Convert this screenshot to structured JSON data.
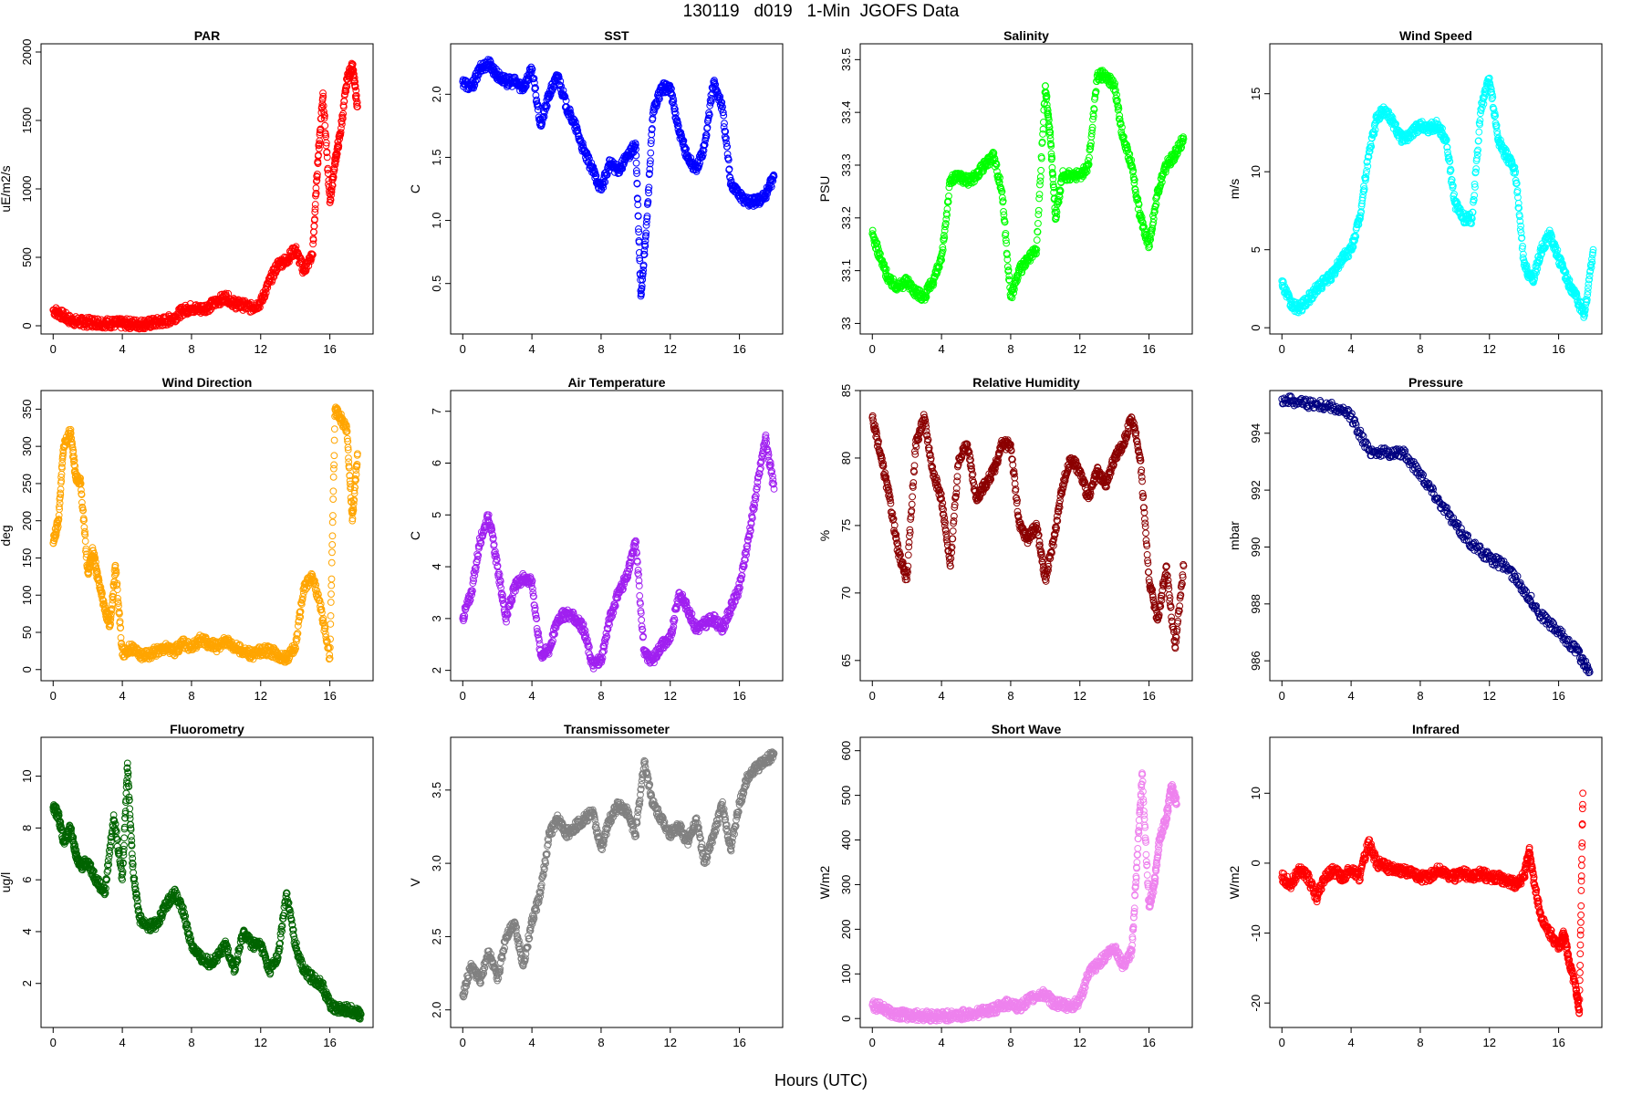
{
  "page": {
    "title": "130119   d019   1-Min  JGOFS Data",
    "xlabel": "Hours (UTC)"
  },
  "chart_data": [
    {
      "id": "par",
      "type": "scatter",
      "title": "PAR",
      "ylabel": "uE/m2/s",
      "color": "#ff0000",
      "xlim": [
        -0.7,
        18.5
      ],
      "ylim": [
        -60,
        2060
      ],
      "xticks": [
        0,
        4,
        8,
        12,
        16
      ],
      "yticks": [
        0,
        500,
        1000,
        1500,
        2000
      ],
      "x": [
        0,
        0.5,
        1,
        1.5,
        2,
        2.5,
        3,
        3.5,
        4,
        4.5,
        5,
        5.5,
        6,
        6.5,
        7,
        7.5,
        8,
        8.5,
        9,
        9.5,
        10,
        10.5,
        11,
        11.5,
        12,
        12.5,
        13,
        13.5,
        14,
        14.5,
        15,
        15.3,
        15.6,
        16,
        16.3,
        16.6,
        17,
        17.3,
        17.6
      ],
      "y": [
        115,
        80,
        40,
        28,
        25,
        25,
        20,
        18,
        15,
        15,
        12,
        15,
        25,
        35,
        60,
        110,
        130,
        120,
        140,
        180,
        210,
        160,
        150,
        130,
        170,
        320,
        450,
        480,
        560,
        400,
        520,
        1200,
        1700,
        900,
        1200,
        1400,
        1800,
        1900,
        1600
      ]
    },
    {
      "id": "sst",
      "type": "scatter",
      "title": "SST",
      "ylabel": "C",
      "color": "#0000ff",
      "xlim": [
        -0.7,
        18.5
      ],
      "ylim": [
        0.1,
        2.4
      ],
      "xticks": [
        0,
        4,
        8,
        12,
        16
      ],
      "yticks": [
        0.5,
        1.0,
        1.5,
        2.0
      ],
      "x": [
        0,
        0.5,
        1,
        1.5,
        2,
        2.5,
        3,
        3.5,
        4,
        4.5,
        5,
        5.5,
        6,
        6.5,
        7,
        7.5,
        8,
        8.5,
        9,
        9.5,
        10,
        10.3,
        10.6,
        11,
        11.5,
        12,
        12.5,
        13,
        13.5,
        14,
        14.5,
        15,
        15.5,
        16,
        16.5,
        17,
        17.5,
        18
      ],
      "y": [
        2.1,
        2.05,
        2.2,
        2.25,
        2.15,
        2.1,
        2.1,
        2.05,
        2.2,
        1.75,
        2.0,
        2.15,
        1.9,
        1.75,
        1.55,
        1.4,
        1.25,
        1.45,
        1.4,
        1.5,
        1.6,
        0.4,
        0.9,
        1.85,
        2.05,
        2.05,
        1.7,
        1.5,
        1.4,
        1.6,
        2.1,
        1.9,
        1.3,
        1.2,
        1.15,
        1.15,
        1.2,
        1.35
      ]
    },
    {
      "id": "salinity",
      "type": "scatter",
      "title": "Salinity",
      "ylabel": "PSU",
      "color": "#00ff00",
      "xlim": [
        -0.7,
        18.5
      ],
      "ylim": [
        32.98,
        33.53
      ],
      "xticks": [
        0,
        4,
        8,
        12,
        16
      ],
      "yticks": [
        33.0,
        33.1,
        33.2,
        33.3,
        33.4,
        33.5
      ],
      "x": [
        0,
        0.5,
        1,
        1.5,
        2,
        2.5,
        3,
        3.5,
        4,
        4.5,
        5,
        5.5,
        6,
        6.5,
        7,
        7.5,
        8,
        8.5,
        9,
        9.5,
        10,
        10.3,
        10.6,
        11,
        11.5,
        12,
        12.5,
        13,
        13.5,
        14,
        14.5,
        15,
        15.5,
        16,
        16.5,
        17,
        17.5,
        18
      ],
      "y": [
        33.17,
        33.12,
        33.08,
        33.07,
        33.08,
        33.06,
        33.05,
        33.08,
        33.12,
        33.27,
        33.28,
        33.27,
        33.28,
        33.3,
        33.32,
        33.25,
        33.05,
        33.1,
        33.12,
        33.14,
        33.45,
        33.35,
        33.2,
        33.28,
        33.28,
        33.28,
        33.3,
        33.47,
        33.47,
        33.45,
        33.35,
        33.3,
        33.2,
        33.15,
        33.25,
        33.3,
        33.32,
        33.35
      ]
    },
    {
      "id": "wind_speed",
      "type": "scatter",
      "title": "Wind Speed",
      "ylabel": "m/s",
      "color": "#00ffff",
      "xlim": [
        -0.7,
        18.5
      ],
      "ylim": [
        -0.4,
        18.2
      ],
      "xticks": [
        0,
        4,
        8,
        12,
        16
      ],
      "yticks": [
        0,
        5,
        10,
        15
      ],
      "x": [
        0,
        0.5,
        1,
        1.5,
        2,
        2.5,
        3,
        3.5,
        4,
        4.5,
        5,
        5.5,
        6,
        6.5,
        7,
        7.5,
        8,
        8.5,
        9,
        9.5,
        10,
        10.5,
        11,
        11.5,
        12,
        12.5,
        13,
        13.5,
        14,
        14.5,
        15,
        15.5,
        16,
        16.5,
        17,
        17.5,
        18
      ],
      "y": [
        3,
        1.5,
        1.2,
        1.8,
        2.5,
        3,
        3.5,
        4.5,
        5,
        7,
        11,
        13.5,
        14,
        13,
        12,
        12.5,
        13,
        12.8,
        13,
        12,
        8,
        7,
        7,
        14,
        16,
        12,
        11,
        10,
        4,
        3,
        5,
        6,
        4.5,
        3,
        2,
        0.8,
        5
      ]
    },
    {
      "id": "wind_direction",
      "type": "scatter",
      "title": "Wind Direction",
      "ylabel": "deg",
      "color": "#ffa500",
      "xlim": [
        -0.7,
        18.5
      ],
      "ylim": [
        -15,
        375
      ],
      "xticks": [
        0,
        4,
        8,
        12,
        16
      ],
      "yticks": [
        0,
        50,
        100,
        150,
        200,
        250,
        300,
        350
      ],
      "x": [
        0,
        0.3,
        0.6,
        1,
        1.3,
        1.6,
        2,
        2.3,
        2.6,
        3,
        3.3,
        3.6,
        4,
        4.5,
        5,
        5.5,
        6,
        6.5,
        7,
        7.5,
        8,
        8.5,
        9,
        9.5,
        10,
        10.5,
        11,
        11.5,
        12,
        12.5,
        13,
        13.5,
        14,
        14.5,
        15,
        15.5,
        16,
        16.3,
        16.6,
        17,
        17.3,
        17.6
      ],
      "y": [
        170,
        200,
        300,
        320,
        260,
        250,
        130,
        160,
        120,
        80,
        60,
        140,
        20,
        30,
        20,
        20,
        25,
        30,
        25,
        35,
        30,
        40,
        35,
        30,
        40,
        30,
        25,
        20,
        25,
        25,
        20,
        15,
        30,
        110,
        125,
        80,
        15,
        350,
        340,
        320,
        200,
        290
      ]
    },
    {
      "id": "air_temperature",
      "type": "scatter",
      "title": "Air Temperature",
      "ylabel": "C",
      "color": "#a020f0",
      "xlim": [
        -0.7,
        18.5
      ],
      "ylim": [
        1.8,
        7.4
      ],
      "xticks": [
        0,
        4,
        8,
        12,
        16
      ],
      "yticks": [
        2,
        3,
        4,
        5,
        6,
        7
      ],
      "x": [
        0,
        0.5,
        1,
        1.5,
        2,
        2.5,
        3,
        3.5,
        4,
        4.5,
        5,
        5.5,
        6,
        6.5,
        7,
        7.5,
        8,
        8.5,
        9,
        9.5,
        10,
        10.5,
        11,
        11.5,
        12,
        12.5,
        13,
        13.5,
        14,
        14.5,
        15,
        15.5,
        16,
        16.5,
        17,
        17.5,
        18
      ],
      "y": [
        3,
        3.5,
        4.5,
        5,
        4,
        3,
        3.6,
        3.8,
        3.7,
        2.3,
        2.4,
        3,
        3.1,
        3,
        2.8,
        2.1,
        2.2,
        3,
        3.5,
        3.8,
        4.5,
        2.3,
        2.2,
        2.5,
        2.6,
        3.5,
        3.2,
        2.8,
        2.9,
        3,
        2.8,
        3.2,
        3.6,
        4.5,
        5.5,
        6.5,
        5.5
      ]
    },
    {
      "id": "relative_humidity",
      "type": "scatter",
      "title": "Relative Humidity",
      "ylabel": "%",
      "color": "#8b0000",
      "xlim": [
        -0.7,
        18.5
      ],
      "ylim": [
        63.5,
        85
      ],
      "xticks": [
        0,
        4,
        8,
        12,
        16
      ],
      "yticks": [
        65,
        70,
        75,
        80,
        85
      ],
      "x": [
        0,
        0.5,
        1,
        1.5,
        2,
        2.5,
        3,
        3.5,
        4,
        4.5,
        5,
        5.5,
        6,
        6.5,
        7,
        7.5,
        8,
        8.5,
        9,
        9.5,
        10,
        10.5,
        11,
        11.5,
        12,
        12.5,
        13,
        13.5,
        14,
        14.5,
        15,
        15.5,
        16,
        16.5,
        17,
        17.5,
        18
      ],
      "y": [
        83,
        80,
        77,
        73,
        71,
        81,
        83,
        79,
        77,
        72,
        80,
        81,
        77,
        78,
        79,
        81,
        81,
        75,
        74,
        75,
        71,
        74,
        78,
        80,
        79,
        77,
        79,
        78,
        80,
        81,
        83,
        80,
        71,
        68,
        72,
        66,
        72
      ]
    },
    {
      "id": "pressure",
      "type": "scatter",
      "title": "Pressure",
      "ylabel": "mbar",
      "color": "#000080",
      "xlim": [
        -0.7,
        18.5
      ],
      "ylim": [
        985.3,
        995.5
      ],
      "xticks": [
        0,
        4,
        8,
        12,
        16
      ],
      "yticks": [
        986,
        988,
        990,
        992,
        994
      ],
      "x": [
        0,
        1,
        2,
        3,
        4,
        5,
        6,
        7,
        8,
        9,
        10,
        11,
        12,
        13,
        14,
        15,
        16,
        17,
        17.8
      ],
      "y": [
        995.2,
        995.1,
        995.0,
        994.9,
        994.6,
        993.4,
        993.3,
        993.3,
        992.6,
        991.7,
        990.8,
        990.1,
        989.6,
        989.3,
        988.5,
        987.6,
        987,
        986.4,
        985.6
      ]
    },
    {
      "id": "fluorometry",
      "type": "scatter",
      "title": "Fluorometry",
      "ylabel": "ug/l",
      "color": "#006400",
      "xlim": [
        -0.7,
        18.5
      ],
      "ylim": [
        0.3,
        11.5
      ],
      "xticks": [
        0,
        4,
        8,
        12,
        16
      ],
      "yticks": [
        2,
        4,
        6,
        8,
        10
      ],
      "x": [
        0,
        0.3,
        0.6,
        1,
        1.3,
        1.6,
        2,
        2.5,
        3,
        3.5,
        4,
        4.3,
        4.6,
        5,
        5.5,
        6,
        6.5,
        7,
        7.5,
        8,
        8.5,
        9,
        9.5,
        10,
        10.5,
        11,
        11.5,
        12,
        12.5,
        13,
        13.5,
        14,
        14.5,
        15,
        15.5,
        16,
        16.5,
        17,
        17.5,
        17.8
      ],
      "y": [
        8.8,
        8.5,
        7.5,
        8,
        7,
        6.5,
        6.7,
        6,
        5.5,
        8.5,
        6,
        10.5,
        6.5,
        4.5,
        4.2,
        4.3,
        5,
        5.5,
        4.8,
        3.5,
        3,
        2.8,
        3,
        3.5,
        2.5,
        4,
        3.5,
        3.5,
        2.5,
        3,
        5.5,
        3.5,
        2.5,
        2.2,
        2,
        1.2,
        1,
        1,
        0.9,
        0.8
      ]
    },
    {
      "id": "transmissometer",
      "type": "scatter",
      "title": "Transmissometer",
      "ylabel": "V",
      "color": "#808080",
      "xlim": [
        -0.7,
        18.5
      ],
      "ylim": [
        1.88,
        3.86
      ],
      "xticks": [
        0,
        4,
        8,
        12,
        16
      ],
      "yticks": [
        2.0,
        2.5,
        3.0,
        3.5
      ],
      "x": [
        0,
        0.5,
        1,
        1.5,
        2,
        2.5,
        3,
        3.5,
        4,
        4.5,
        5,
        5.5,
        6,
        6.5,
        7,
        7.5,
        8,
        8.5,
        9,
        9.5,
        10,
        10.5,
        11,
        11.5,
        12,
        12.5,
        13,
        13.5,
        14,
        14.5,
        15,
        15.5,
        16,
        16.5,
        17,
        17.5,
        18
      ],
      "y": [
        2.1,
        2.3,
        2.2,
        2.4,
        2.2,
        2.5,
        2.6,
        2.3,
        2.6,
        2.8,
        3.2,
        3.3,
        3.2,
        3.25,
        3.3,
        3.35,
        3.1,
        3.3,
        3.4,
        3.35,
        3.2,
        3.7,
        3.4,
        3.3,
        3.2,
        3.25,
        3.15,
        3.3,
        3.0,
        3.2,
        3.4,
        3.1,
        3.4,
        3.6,
        3.65,
        3.7,
        3.75
      ]
    },
    {
      "id": "short_wave",
      "type": "scatter",
      "title": "Short Wave",
      "ylabel": "W/m2",
      "color": "#ee82ee",
      "xlim": [
        -0.7,
        18.5
      ],
      "ylim": [
        -20,
        630
      ],
      "xticks": [
        0,
        4,
        8,
        12,
        16
      ],
      "yticks": [
        0,
        100,
        200,
        300,
        400,
        500,
        600
      ],
      "x": [
        0,
        0.5,
        1,
        1.5,
        2,
        2.5,
        3,
        3.5,
        4,
        4.5,
        5,
        5.5,
        6,
        6.5,
        7,
        7.5,
        8,
        8.5,
        9,
        9.5,
        10,
        10.5,
        11,
        11.5,
        12,
        12.5,
        13,
        13.5,
        14,
        14.5,
        15,
        15.3,
        15.6,
        16,
        16.3,
        16.6,
        17,
        17.3,
        17.6
      ],
      "y": [
        30,
        25,
        15,
        10,
        8,
        7,
        6,
        5,
        5,
        6,
        8,
        10,
        12,
        15,
        20,
        30,
        35,
        25,
        40,
        50,
        55,
        35,
        30,
        28,
        40,
        100,
        120,
        140,
        160,
        120,
        150,
        350,
        550,
        250,
        300,
        400,
        450,
        520,
        480
      ]
    },
    {
      "id": "infrared",
      "type": "scatter",
      "title": "Infrared",
      "ylabel": "W/m2",
      "color": "#ff0000",
      "xlim": [
        -0.7,
        18.5
      ],
      "ylim": [
        -23.5,
        18
      ],
      "xticks": [
        0,
        4,
        8,
        12,
        16
      ],
      "yticks": [
        -20,
        -10,
        0,
        10
      ],
      "x": [
        0,
        0.5,
        1,
        1.5,
        2,
        2.5,
        3,
        3.5,
        4,
        4.5,
        5,
        5.5,
        6,
        6.5,
        7,
        7.5,
        8,
        8.5,
        9,
        9.5,
        10,
        10.5,
        11,
        11.5,
        12,
        12.5,
        13,
        13.5,
        14,
        14.3,
        14.6,
        15,
        15.5,
        16,
        16.3,
        16.6,
        17,
        17.2,
        17.4
      ],
      "y": [
        -2,
        -3,
        -1,
        -2,
        -5,
        -2,
        -1,
        -2,
        -1,
        -2,
        3,
        0,
        -0.5,
        -1,
        -1,
        -1.5,
        -2,
        -2,
        -1,
        -1.5,
        -2,
        -1.5,
        -2,
        -1.5,
        -2,
        -2,
        -2.5,
        -3,
        -2,
        2,
        -3,
        -8,
        -10,
        -12,
        -10,
        -14,
        -18,
        -21,
        10
      ]
    }
  ]
}
